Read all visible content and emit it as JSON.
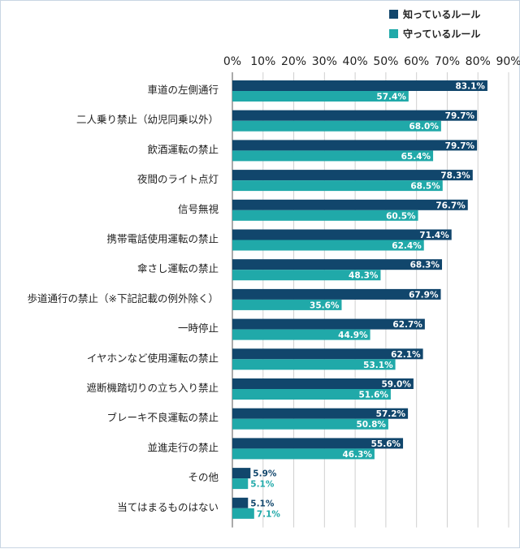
{
  "colors": {
    "known": "#11466c",
    "obeyed": "#20a9a9",
    "grid": "#d0d0d0",
    "axis_line": "#555555",
    "text": "#222222"
  },
  "chart_data": {
    "type": "bar",
    "orientation": "horizontal",
    "title": "",
    "xlabel": "",
    "ylabel": "",
    "xlim": [
      0,
      90
    ],
    "x_ticks": [
      "0%",
      "10%",
      "20%",
      "30%",
      "40%",
      "50%",
      "60%",
      "70%",
      "80%",
      "90%"
    ],
    "x_tick_values": [
      0,
      10,
      20,
      30,
      40,
      50,
      60,
      70,
      80,
      90
    ],
    "grid": true,
    "legend_position": "top-right",
    "categories": [
      "車道の左側通行",
      "二人乗り禁止（幼児同乗以外）",
      "飲酒運転の禁止",
      "夜間のライト点灯",
      "信号無視",
      "携帯電話使用運転の禁止",
      "傘さし運転の禁止",
      "歩道通行の禁止（※下記記載の例外除く）",
      "一時停止",
      "イヤホンなど使用運転の禁止",
      "遮断機踏切りの立ち入り禁止",
      "ブレーキ不良運転の禁止",
      "並進走行の禁止",
      "その他",
      "当てはまるものはない"
    ],
    "series": [
      {
        "name": "知っているルール",
        "color": "#11466c",
        "values": [
          83.1,
          79.7,
          79.7,
          78.3,
          76.7,
          71.4,
          68.3,
          67.9,
          62.7,
          62.1,
          59.0,
          57.2,
          55.6,
          5.9,
          5.1
        ],
        "labels": [
          "83.1%",
          "79.7%",
          "79.7%",
          "78.3%",
          "76.7%",
          "71.4%",
          "68.3%",
          "67.9%",
          "62.7%",
          "62.1%",
          "59.0%",
          "57.2%",
          "55.6%",
          "5.9%",
          "5.1%"
        ]
      },
      {
        "name": "守っているルール",
        "color": "#20a9a9",
        "values": [
          57.4,
          68.0,
          65.4,
          68.5,
          60.5,
          62.4,
          48.3,
          35.6,
          44.9,
          53.1,
          51.6,
          50.8,
          46.3,
          5.1,
          7.1
        ],
        "labels": [
          "57.4%",
          "68.0%",
          "65.4%",
          "68.5%",
          "60.5%",
          "62.4%",
          "48.3%",
          "35.6%",
          "44.9%",
          "53.1%",
          "51.6%",
          "50.8%",
          "46.3%",
          "5.1%",
          "7.1%"
        ]
      }
    ]
  }
}
